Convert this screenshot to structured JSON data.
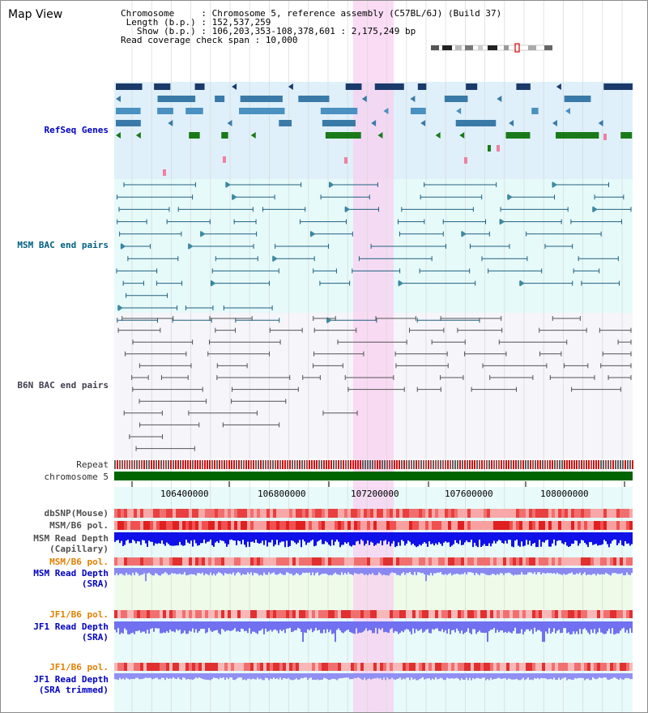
{
  "title": "Map View",
  "info": {
    "line1": "Chromosome     : Chromosome 5, reference assembly (C57BL/6J) (Build 37)",
    "line2": " Length (b.p.) : 152,537,259",
    "line3": "   Show (b.p.) : 106,203,353-108,378,601 : 2,175,249 bp",
    "line4": "Read coverage check span : 10,000"
  },
  "tracks": {
    "refseq": "RefSeq Genes",
    "msm_bac": "MSM BAC end pairs",
    "b6n_bac": "B6N BAC end pairs",
    "repeat": "Repeat",
    "chromosome": "chromosome 5",
    "dbsnp": "dbSNP(Mouse)",
    "msm_b6_pol": "MSM/B6 pol.",
    "msm_read_depth_cap_1": "MSM Read Depth",
    "msm_read_depth_cap_2": "(Capillary)",
    "msm_b6_pol_2": "MSM/B6 pol.",
    "msm_read_depth_sra_1": "MSM Read Depth",
    "msm_read_depth_sra_2": "(SRA)",
    "jf1_b6_pol": "JF1/B6 pol.",
    "jf1_read_depth_sra_1": "JF1 Read Depth",
    "jf1_read_depth_sra_2": "(SRA)",
    "jf1_b6_pol_2": "JF1/B6 pol.",
    "jf1_read_depth_trim_1": "JF1 Read Depth",
    "jf1_read_depth_trim_2": "(SRA trimmed)"
  },
  "ruler": [
    "106400000",
    "106800000",
    "107200000",
    "107600000",
    "108000000"
  ],
  "colors": {
    "refseq_bg": "#dff0fa",
    "msm_bg": "#e6fafa",
    "b6n_bg": "#f5f5fa",
    "highlight": "#f8d0f0",
    "label_blue": "#0000c0",
    "label_teal": "#006080",
    "label_orange": "#e08000",
    "chromosome": "#006400"
  }
}
